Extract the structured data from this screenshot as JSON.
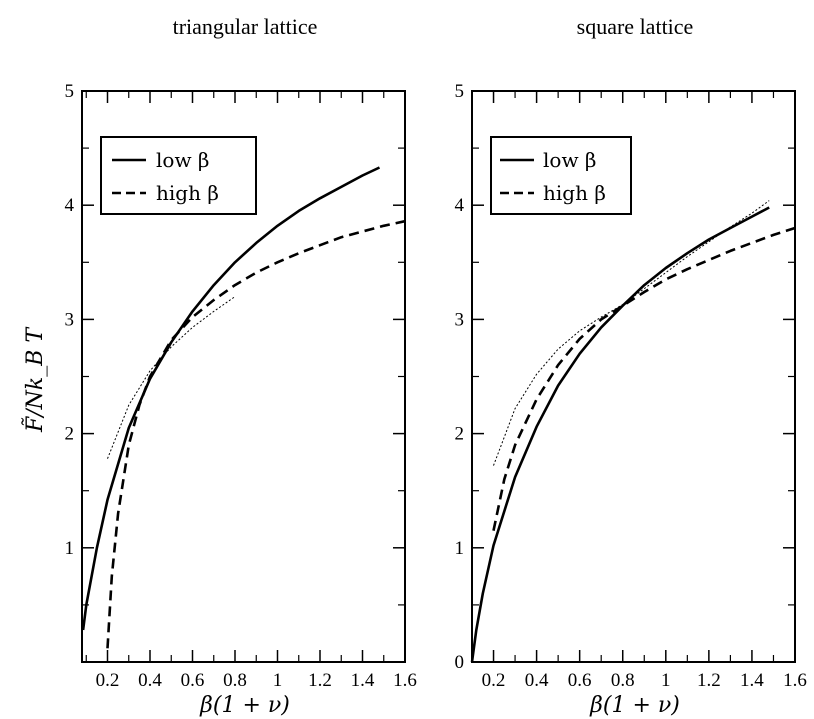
{
  "chart_data": [
    {
      "type": "line",
      "title": "triangular lattice",
      "xlabel": "β(1 + ν)",
      "ylabel": "F̃/Nk_B T",
      "xlim": [
        0.08,
        1.6
      ],
      "ylim": [
        0,
        5
      ],
      "xticks": [
        "0.2",
        "0.4",
        "0.6",
        "0.8",
        "1",
        "1.2",
        "1.4",
        "1.6"
      ],
      "yticks": [
        "1",
        "2",
        "3",
        "4",
        "5"
      ],
      "legend": {
        "placement": "top-left",
        "entries": [
          "low β",
          "high β"
        ]
      },
      "series": [
        {
          "name": "low β",
          "style": "solid",
          "x": [
            0.085,
            0.1,
            0.15,
            0.2,
            0.3,
            0.4,
            0.5,
            0.6,
            0.7,
            0.8,
            0.9,
            1.0,
            1.1,
            1.2,
            1.3,
            1.4,
            1.48
          ],
          "y": [
            0.28,
            0.5,
            1.0,
            1.42,
            2.05,
            2.48,
            2.8,
            3.07,
            3.3,
            3.5,
            3.67,
            3.82,
            3.95,
            4.06,
            4.16,
            4.26,
            4.33
          ]
        },
        {
          "name": "high β",
          "style": "dashed",
          "x": [
            0.2,
            0.22,
            0.25,
            0.3,
            0.35,
            0.4,
            0.5,
            0.6,
            0.7,
            0.8,
            0.9,
            1.0,
            1.1,
            1.2,
            1.3,
            1.4,
            1.5,
            1.6
          ],
          "y": [
            0.12,
            0.75,
            1.3,
            1.9,
            2.25,
            2.5,
            2.82,
            3.02,
            3.17,
            3.3,
            3.41,
            3.5,
            3.58,
            3.65,
            3.72,
            3.77,
            3.82,
            3.86
          ]
        },
        {
          "style": "thin",
          "x": [
            0.2,
            0.3,
            0.4,
            0.5,
            0.6,
            0.7,
            0.8
          ],
          "y": [
            1.78,
            2.25,
            2.55,
            2.76,
            2.93,
            3.07,
            3.2
          ]
        }
      ]
    },
    {
      "type": "line",
      "title": "square lattice",
      "xlabel": "β(1 + ν)",
      "xlim": [
        0.1,
        1.6
      ],
      "ylim": [
        0,
        5
      ],
      "xticks": [
        "0.2",
        "0.4",
        "0.6",
        "0.8",
        "1",
        "1.2",
        "1.4",
        "1.6"
      ],
      "yticks": [
        "0",
        "1",
        "2",
        "3",
        "4",
        "5"
      ],
      "legend": {
        "placement": "top-left",
        "entries": [
          "low β",
          "high β"
        ]
      },
      "series": [
        {
          "name": "low β",
          "style": "solid",
          "x": [
            0.1,
            0.12,
            0.15,
            0.2,
            0.3,
            0.4,
            0.5,
            0.6,
            0.7,
            0.8,
            0.9,
            1.0,
            1.1,
            1.2,
            1.3,
            1.4,
            1.48
          ],
          "y": [
            0.0,
            0.28,
            0.6,
            1.02,
            1.62,
            2.06,
            2.42,
            2.7,
            2.93,
            3.12,
            3.3,
            3.45,
            3.58,
            3.7,
            3.8,
            3.9,
            3.98
          ]
        },
        {
          "name": "high β",
          "style": "dashed",
          "x": [
            0.2,
            0.25,
            0.3,
            0.4,
            0.5,
            0.6,
            0.7,
            0.8,
            0.9,
            1.0,
            1.1,
            1.2,
            1.3,
            1.4,
            1.5,
            1.6
          ],
          "y": [
            1.15,
            1.6,
            1.9,
            2.3,
            2.6,
            2.83,
            3.0,
            3.12,
            3.24,
            3.35,
            3.44,
            3.52,
            3.6,
            3.67,
            3.74,
            3.8
          ]
        },
        {
          "style": "thin",
          "x": [
            0.2,
            0.3,
            0.4,
            0.5,
            0.6,
            0.7,
            0.8,
            0.9,
            1.0,
            1.1,
            1.2,
            1.3,
            1.4,
            1.48
          ],
          "y": [
            1.72,
            2.22,
            2.52,
            2.74,
            2.9,
            3.02,
            3.13,
            3.27,
            3.41,
            3.55,
            3.68,
            3.81,
            3.93,
            4.04
          ]
        }
      ]
    }
  ]
}
